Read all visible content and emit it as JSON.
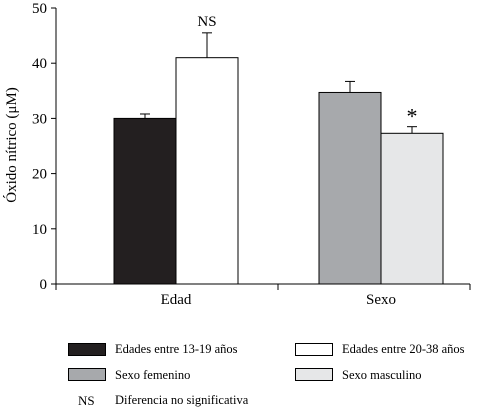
{
  "chart_data": {
    "type": "bar",
    "ylabel": "Óxido nítrico (μM)",
    "ylim": [
      0,
      50
    ],
    "yticks": [
      0,
      10,
      20,
      30,
      40,
      50
    ],
    "categories": [
      "Edad",
      "Sexo"
    ],
    "groups": [
      {
        "category": "Edad",
        "bars": [
          {
            "name": "Edades entre 13-19 años",
            "value": 30,
            "error": 0.8,
            "color": "#231f20"
          },
          {
            "name": "Edades entre 20-38 años",
            "value": 41,
            "error": 4.5,
            "color": "#ffffff"
          }
        ],
        "annotation": "NS"
      },
      {
        "category": "Sexo",
        "bars": [
          {
            "name": "Sexo femenino",
            "value": 34.7,
            "error": 2.0,
            "color": "#a7a9ac"
          },
          {
            "name": "Sexo masculino",
            "value": 27.3,
            "error": 1.2,
            "color": "#e6e7e8"
          }
        ],
        "annotation": "*",
        "annotation_bar": 1
      }
    ]
  },
  "legend": {
    "items": [
      {
        "label": "Edades entre 13-19 años",
        "color": "#231f20"
      },
      {
        "label": "Edades entre 20-38 años",
        "color": "#ffffff"
      },
      {
        "label": "Sexo femenino",
        "color": "#a7a9ac"
      },
      {
        "label": "Sexo masculino",
        "color": "#e6e7e8"
      }
    ],
    "ns_key": "NS",
    "ns_text": "Diferencia no significativa"
  }
}
